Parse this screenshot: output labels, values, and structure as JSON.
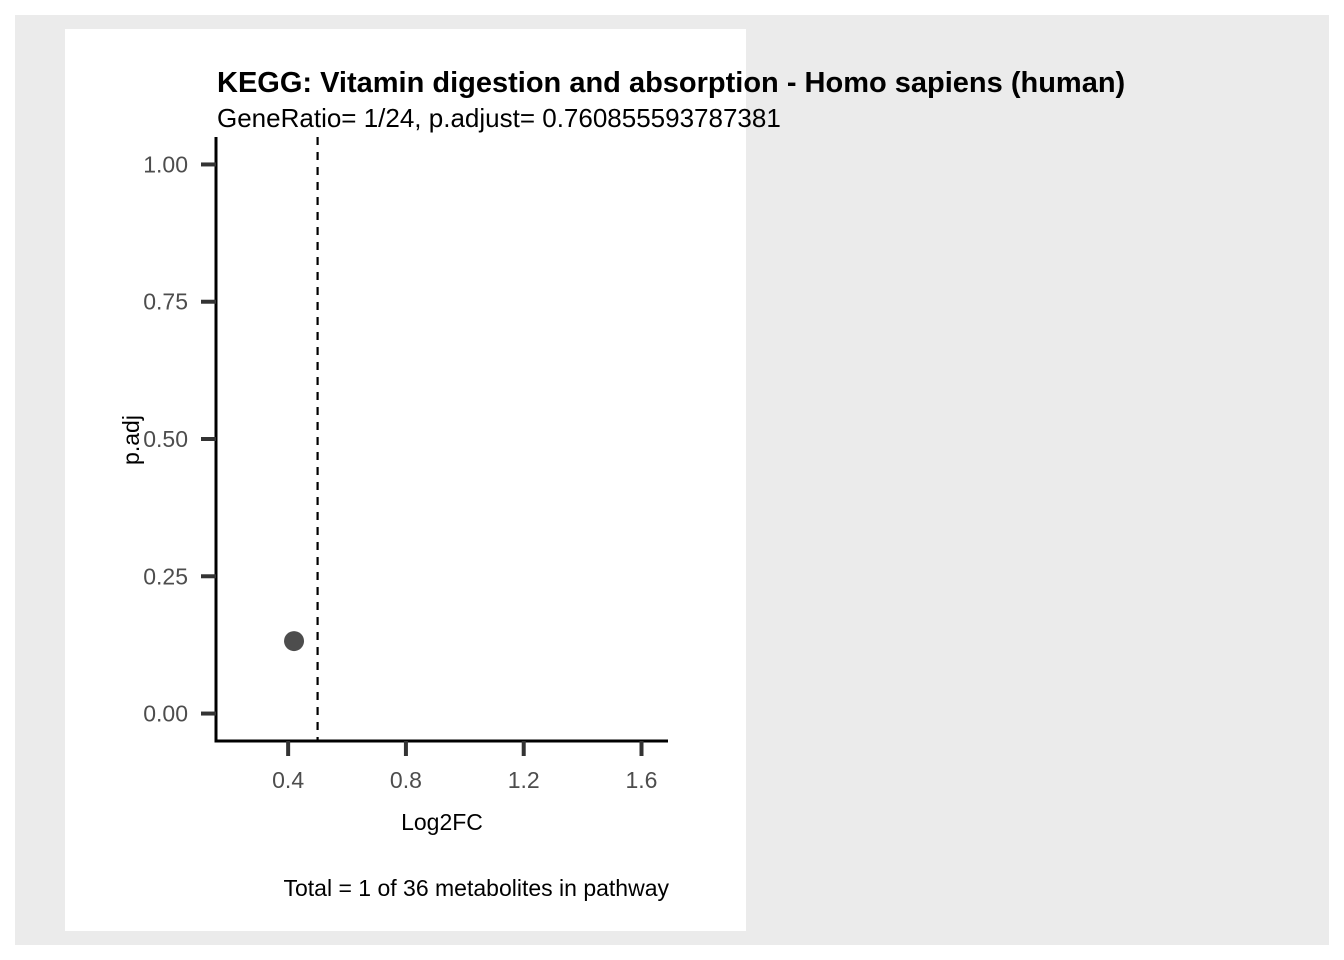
{
  "colors": {
    "outer_background": "#ebebeb",
    "plot_background": "#ffffff",
    "axis_line": "#000000",
    "tick": "#333333",
    "tick_label": "#4d4d4d",
    "point": "#4d4d4d",
    "reference_line": "#000000"
  },
  "chart_data": {
    "type": "scatter",
    "title": "KEGG: Vitamin digestion and absorption - Homo sapiens (human)",
    "subtitle": "GeneRatio= 1/24, p.adjust= 0.760855593787381",
    "xlabel": "Log2FC",
    "ylabel": "p.adj",
    "caption": "Total = 1 of 36 metabolites in pathway",
    "xlim": [
      0.155,
      1.69
    ],
    "ylim": [
      -0.05,
      1.05
    ],
    "x_ticks": [
      0.4,
      0.8,
      1.2,
      1.6
    ],
    "x_tick_labels": [
      "0.4",
      "0.8",
      "1.2",
      "1.6"
    ],
    "y_ticks": [
      0.0,
      0.25,
      0.5,
      0.75,
      1.0
    ],
    "y_tick_labels": [
      "0.00",
      "0.25",
      "0.50",
      "0.75",
      "1.00"
    ],
    "points": [
      {
        "x": 0.42,
        "y": 0.132
      }
    ],
    "reference_lines": [
      {
        "orientation": "vertical",
        "x": 0.5,
        "style": "dashed"
      }
    ],
    "grid": false,
    "legend": "none"
  }
}
